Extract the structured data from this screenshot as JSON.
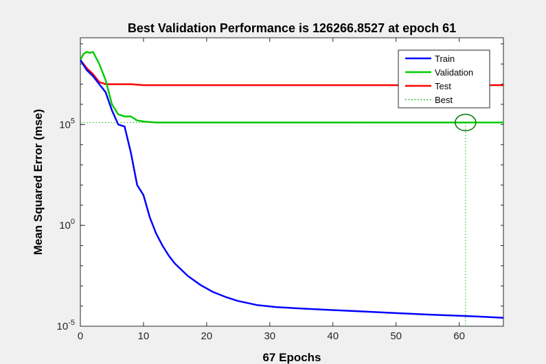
{
  "chart_data": {
    "type": "line",
    "title": "Best Validation Performance is 126266.8527 at epoch 61",
    "xlabel": "67 Epochs",
    "ylabel": "Mean Squared Error  (mse)",
    "xlim": [
      0,
      67
    ],
    "ylim_log10": [
      -5,
      9.3
    ],
    "yscale": "log",
    "xticks": [
      "0",
      "10",
      "20",
      "30",
      "40",
      "50",
      "60"
    ],
    "xtick_values": [
      0,
      10,
      20,
      30,
      40,
      50,
      60
    ],
    "yticks": [
      {
        "base": "10",
        "exp": "-5",
        "value": -5
      },
      {
        "base": "10",
        "exp": "0",
        "value": 0
      },
      {
        "base": "10",
        "exp": "5",
        "value": 5
      }
    ],
    "legend": {
      "placement": "top-right"
    },
    "series": [
      {
        "name": "Train",
        "color": "#0000ff",
        "x": [
          0,
          1,
          2,
          3,
          4,
          5,
          6,
          7,
          8,
          9,
          10,
          11,
          12,
          13,
          14,
          15,
          17,
          19,
          21,
          23,
          25,
          28,
          31,
          35,
          40,
          45,
          50,
          55,
          60,
          63,
          67
        ],
        "log10_y": [
          8.2,
          7.7,
          7.4,
          7.0,
          6.6,
          5.7,
          5.0,
          4.9,
          3.6,
          2.0,
          1.5,
          0.4,
          -0.4,
          -1.0,
          -1.5,
          -1.9,
          -2.5,
          -2.95,
          -3.3,
          -3.55,
          -3.75,
          -3.95,
          -4.05,
          -4.12,
          -4.2,
          -4.27,
          -4.35,
          -4.42,
          -4.48,
          -4.52,
          -4.58
        ]
      },
      {
        "name": "Validation",
        "color": "#00cc00",
        "x": [
          0,
          0.5,
          1,
          1.5,
          2,
          3,
          4,
          5,
          6,
          7,
          8,
          9,
          10,
          12,
          15,
          20,
          30,
          40,
          50,
          60,
          61,
          67
        ],
        "log10_y": [
          8.2,
          8.5,
          8.6,
          8.55,
          8.6,
          8.0,
          7.2,
          6.0,
          5.5,
          5.4,
          5.4,
          5.2,
          5.15,
          5.1,
          5.1,
          5.1,
          5.1,
          5.1,
          5.1,
          5.1,
          5.1,
          5.1
        ]
      },
      {
        "name": "Test",
        "color": "#ff0000",
        "x": [
          0,
          1,
          2,
          3,
          4,
          5,
          8,
          10,
          20,
          30,
          40,
          50,
          60,
          67
        ],
        "log10_y": [
          8.2,
          7.8,
          7.5,
          7.1,
          7.0,
          7.0,
          7.0,
          6.95,
          6.95,
          6.95,
          6.95,
          6.95,
          6.95,
          6.95
        ]
      },
      {
        "name": "Best",
        "color": "#00aa00",
        "style": "dotted",
        "best_epoch": 61,
        "best_log10": 5.1
      }
    ]
  }
}
